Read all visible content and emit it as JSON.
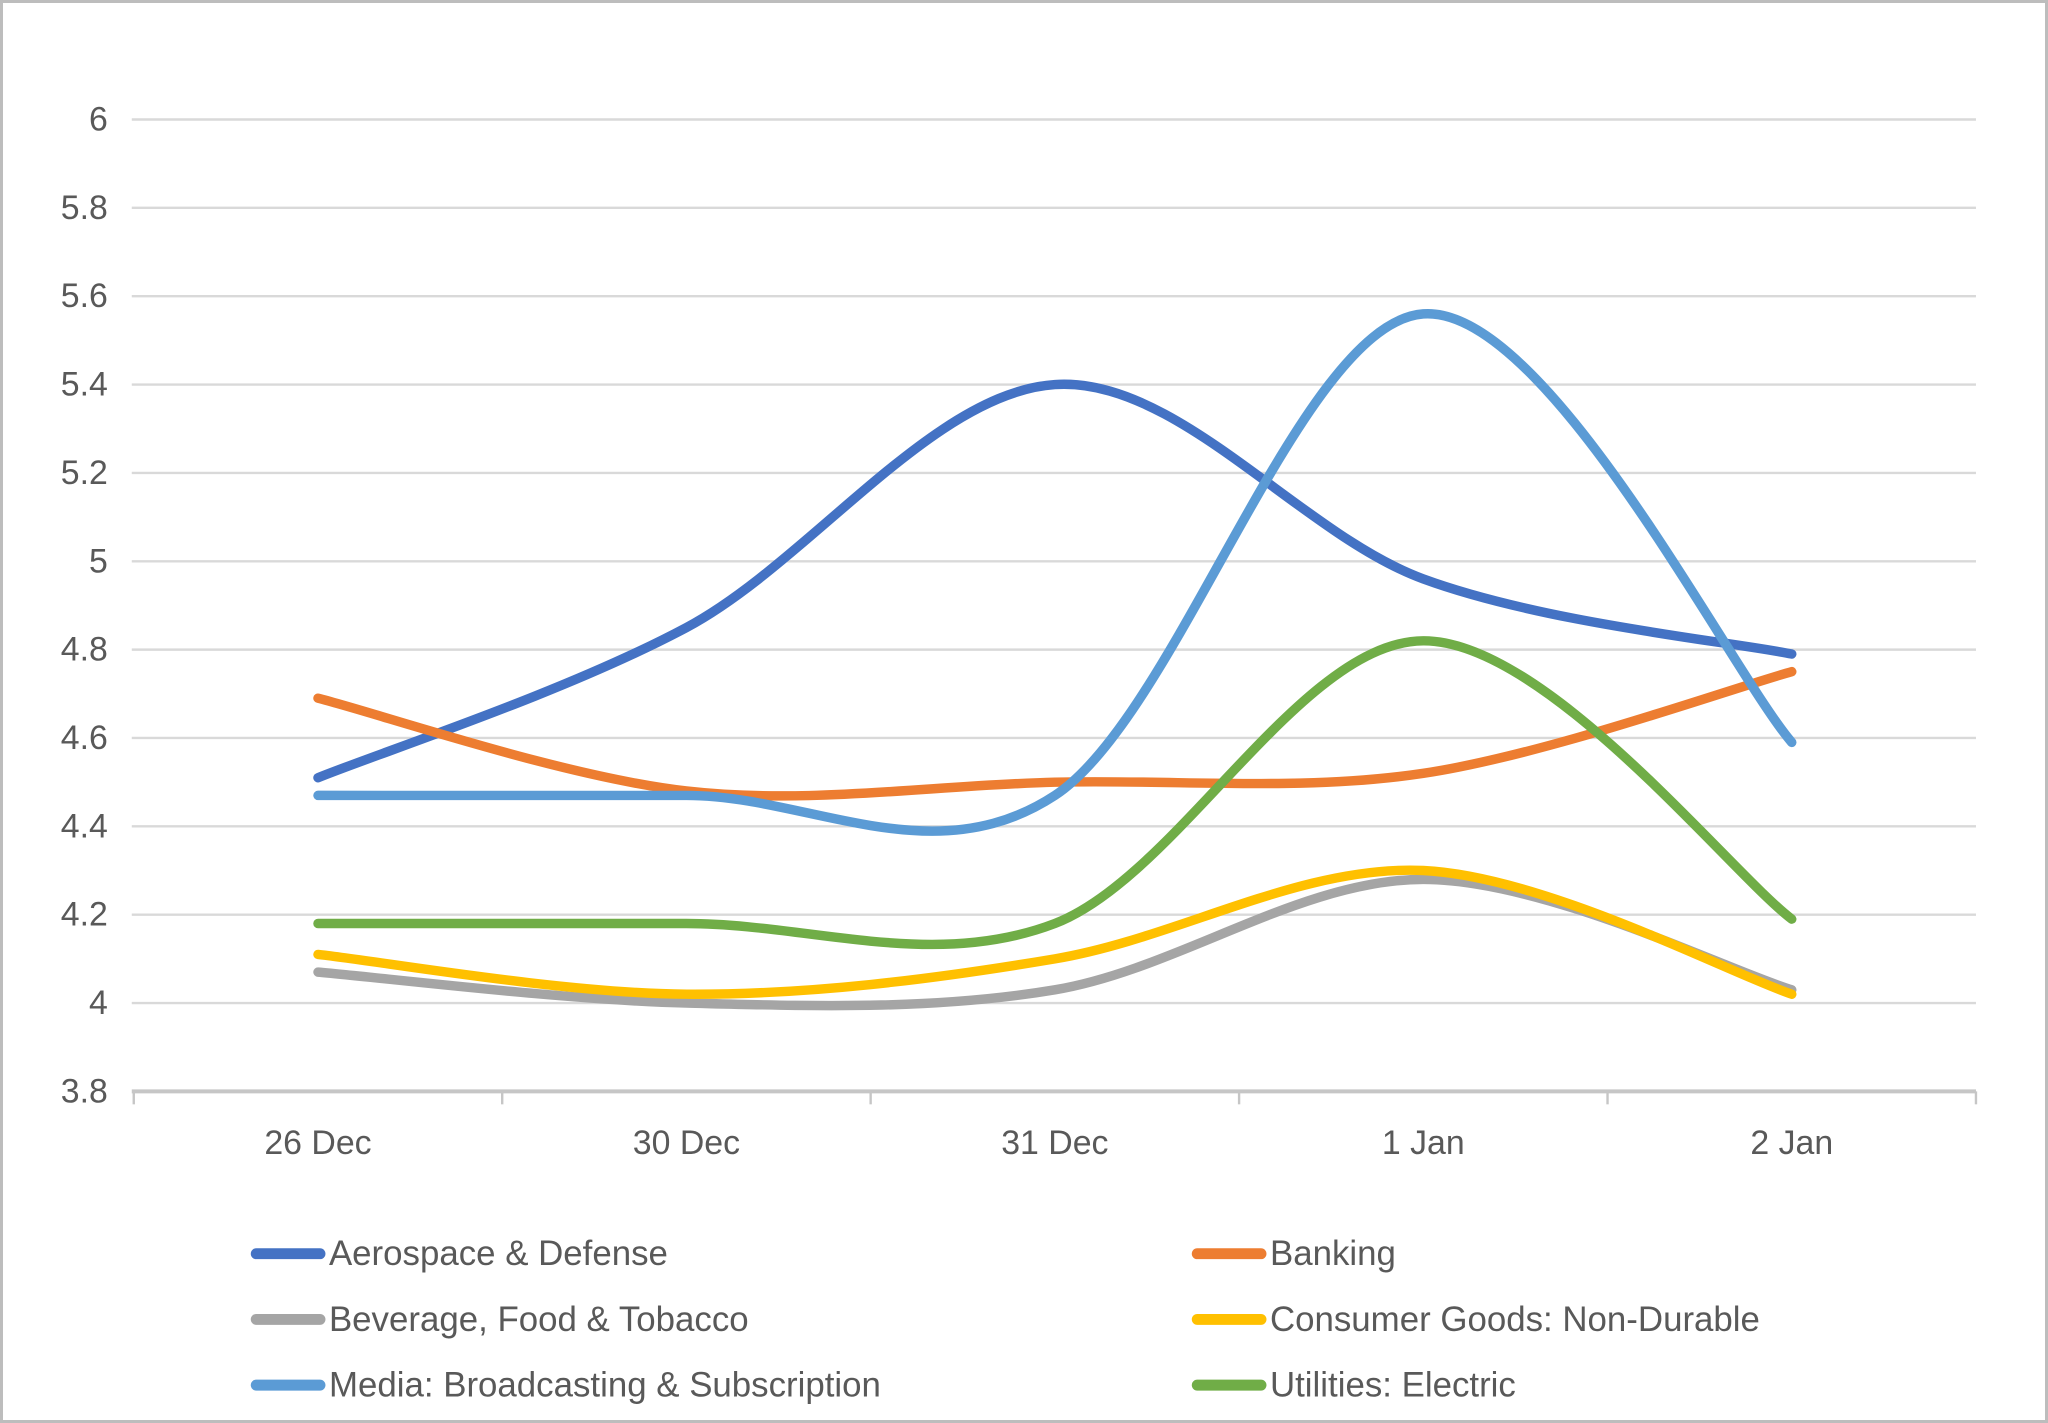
{
  "frame": {
    "background": "#ffffff",
    "border_color": "#bdbdbd"
  },
  "chart_data": {
    "type": "line",
    "smooth": true,
    "title": "",
    "xlabel": "",
    "ylabel": "",
    "categories": [
      "26 Dec",
      "30 Dec",
      "31 Dec",
      "1 Jan",
      "2 Jan"
    ],
    "series": [
      {
        "name": "Aerospace & Defense",
        "color": "#4472C4",
        "values": [
          4.51,
          4.85,
          5.4,
          4.96,
          4.79
        ]
      },
      {
        "name": "Banking",
        "color": "#ED7D31",
        "values": [
          4.69,
          4.48,
          4.5,
          4.52,
          4.75
        ]
      },
      {
        "name": "Beverage, Food & Tobacco",
        "color": "#A5A5A5",
        "values": [
          4.07,
          4.0,
          4.03,
          4.28,
          4.03
        ]
      },
      {
        "name": "Consumer Goods: Non-Durable",
        "color": "#FFC000",
        "values": [
          4.11,
          4.02,
          4.1,
          4.3,
          4.02
        ]
      },
      {
        "name": "Media: Broadcasting & Subscription",
        "color": "#5B9BD5",
        "values": [
          4.47,
          4.47,
          4.47,
          5.56,
          4.59
        ]
      },
      {
        "name": "Utilities: Electric",
        "color": "#70AD47",
        "values": [
          4.18,
          4.18,
          4.18,
          4.82,
          4.19
        ]
      }
    ],
    "y_axis": {
      "min": 3.8,
      "max": 6.0,
      "step": 0.2,
      "tick_labels": [
        "3.8",
        "4",
        "4.2",
        "4.4",
        "4.6",
        "4.8",
        "5",
        "5.2",
        "5.4",
        "5.6",
        "5.8",
        "6"
      ]
    },
    "x_axis": {
      "tick_labels": [
        "26 Dec",
        "30 Dec",
        "31 Dec",
        "1 Jan",
        "2 Jan"
      ]
    },
    "grid": true,
    "gridline_color": "#D9D9D9",
    "axis_line_color": "#C6C6C6",
    "label_color": "#595959",
    "legend": {
      "position": "bottom",
      "columns": 2,
      "entries": [
        "Aerospace & Defense",
        "Banking",
        "Beverage, Food & Tobacco",
        "Consumer Goods: Non-Durable",
        "Media: Broadcasting & Subscription",
        "Utilities: Electric"
      ]
    }
  }
}
